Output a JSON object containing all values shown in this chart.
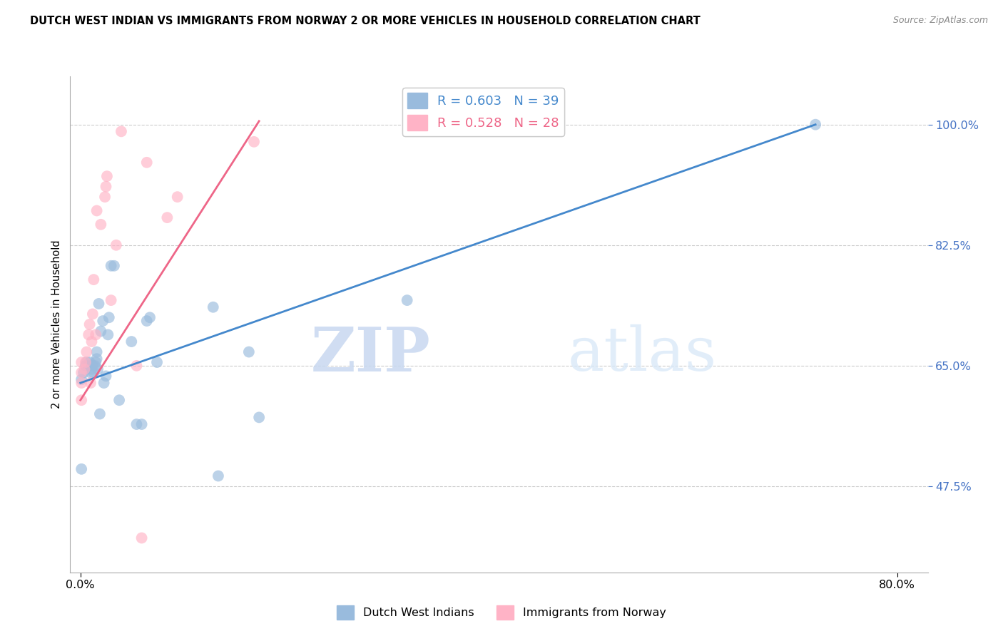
{
  "title": "DUTCH WEST INDIAN VS IMMIGRANTS FROM NORWAY 2 OR MORE VEHICLES IN HOUSEHOLD CORRELATION CHART",
  "source": "Source: ZipAtlas.com",
  "ylabel": "2 or more Vehicles in Household",
  "y_ticks": [
    0.475,
    0.65,
    0.825,
    1.0
  ],
  "y_tick_labels": [
    "47.5%",
    "65.0%",
    "82.5%",
    "100.0%"
  ],
  "xlim": [
    -0.01,
    0.83
  ],
  "ylim": [
    0.35,
    1.07
  ],
  "blue_color": "#99BBDD",
  "pink_color": "#FFB3C6",
  "blue_line_color": "#4488CC",
  "pink_line_color": "#EE6688",
  "legend_blue_label": "R = 0.603   N = 39",
  "legend_pink_label": "R = 0.528   N = 28",
  "watermark_zip": "ZIP",
  "watermark_atlas": "atlas",
  "legend_label_dutch": "Dutch West Indians",
  "legend_label_norway": "Immigrants from Norway",
  "blue_scatter_x": [
    0.001,
    0.001,
    0.003,
    0.005,
    0.006,
    0.008,
    0.009,
    0.01,
    0.011,
    0.012,
    0.013,
    0.014,
    0.015,
    0.016,
    0.016,
    0.017,
    0.018,
    0.019,
    0.02,
    0.022,
    0.023,
    0.025,
    0.027,
    0.028,
    0.03,
    0.033,
    0.038,
    0.05,
    0.055,
    0.06,
    0.065,
    0.068,
    0.075,
    0.13,
    0.135,
    0.165,
    0.175,
    0.32,
    0.72
  ],
  "blue_scatter_y": [
    0.5,
    0.63,
    0.64,
    0.65,
    0.655,
    0.65,
    0.655,
    0.64,
    0.645,
    0.65,
    0.64,
    0.65,
    0.655,
    0.66,
    0.67,
    0.645,
    0.74,
    0.58,
    0.7,
    0.715,
    0.625,
    0.635,
    0.695,
    0.72,
    0.795,
    0.795,
    0.6,
    0.685,
    0.565,
    0.565,
    0.715,
    0.72,
    0.655,
    0.735,
    0.49,
    0.67,
    0.575,
    0.745,
    1.0
  ],
  "pink_scatter_x": [
    0.001,
    0.001,
    0.001,
    0.001,
    0.004,
    0.005,
    0.006,
    0.008,
    0.009,
    0.01,
    0.011,
    0.012,
    0.013,
    0.015,
    0.016,
    0.02,
    0.024,
    0.025,
    0.026,
    0.03,
    0.035,
    0.04,
    0.055,
    0.06,
    0.065,
    0.085,
    0.095,
    0.17
  ],
  "pink_scatter_y": [
    0.6,
    0.625,
    0.64,
    0.655,
    0.645,
    0.655,
    0.67,
    0.695,
    0.71,
    0.625,
    0.685,
    0.725,
    0.775,
    0.695,
    0.875,
    0.855,
    0.895,
    0.91,
    0.925,
    0.745,
    0.825,
    0.99,
    0.65,
    0.4,
    0.945,
    0.865,
    0.895,
    0.975
  ],
  "blue_line_x0": 0.0,
  "blue_line_x1": 0.72,
  "blue_line_y0": 0.625,
  "blue_line_y1": 1.0,
  "pink_line_x0": 0.0,
  "pink_line_x1": 0.175,
  "pink_line_y0": 0.6,
  "pink_line_y1": 1.005,
  "marker_size": 130,
  "marker_alpha": 0.65
}
